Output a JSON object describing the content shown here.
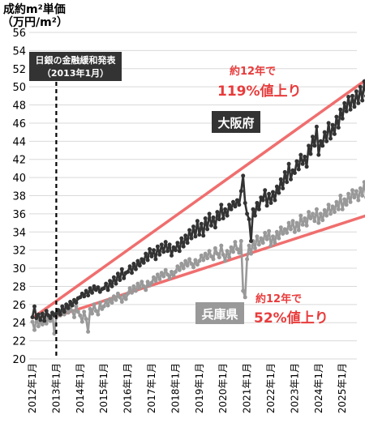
{
  "chart_data": {
    "type": "line",
    "ylabel_line1": "成約m²単価",
    "ylabel_line2": "（万円/m²）",
    "ylim": [
      20,
      56
    ],
    "yticks": [
      20,
      22,
      24,
      26,
      28,
      30,
      32,
      34,
      36,
      38,
      40,
      42,
      44,
      46,
      48,
      50,
      52,
      54,
      56
    ],
    "x_labels": [
      "2012年1月",
      "2013年1月",
      "2014年1月",
      "2015年1月",
      "2016年1月",
      "2017年1月",
      "2018年1月",
      "2019年1月",
      "2020年1月",
      "2021年1月",
      "2022年1月",
      "2023年1月",
      "2024年1月",
      "2025年1月"
    ],
    "x_last_label": "6月",
    "series": [
      {
        "name": "大阪府",
        "color": "#333333",
        "values": [
          24.6,
          25.8,
          24.5,
          24.9,
          24.3,
          25.0,
          24.2,
          25.3,
          24.8,
          24.5,
          25.1,
          24.8,
          25.0,
          25.4,
          24.9,
          25.8,
          25.2,
          26.0,
          25.6,
          26.3,
          25.9,
          26.5,
          26.2,
          26.7,
          26.8,
          27.2,
          26.9,
          27.5,
          27.0,
          27.8,
          27.3,
          28.0,
          27.6,
          27.9,
          27.4,
          27.7,
          27.8,
          28.3,
          27.6,
          28.6,
          28.0,
          29.0,
          28.3,
          29.4,
          28.7,
          29.9,
          28.9,
          29.5,
          29.6,
          30.2,
          29.5,
          30.5,
          29.9,
          30.8,
          30.3,
          31.0,
          30.6,
          31.6,
          30.9,
          32.1,
          31.3,
          32.0,
          31.0,
          32.4,
          31.5,
          32.6,
          31.8,
          32.9,
          31.9,
          32.6,
          31.4,
          32.3,
          32.0,
          32.8,
          31.9,
          33.3,
          32.4,
          33.6,
          32.8,
          34.2,
          33.3,
          34.6,
          33.5,
          35.2,
          33.7,
          34.9,
          33.6,
          35.5,
          34.3,
          36.0,
          34.7,
          35.6,
          34.5,
          36.2,
          35.4,
          37.0,
          35.5,
          36.5,
          35.8,
          37.0,
          36.5,
          37.3,
          36.8,
          37.5,
          37.0,
          38.5,
          40.2,
          37.2,
          36.0,
          35.4,
          33.0,
          36.5,
          35.8,
          37.2,
          36.5,
          37.8,
          37.5,
          38.6,
          36.9,
          38.2,
          37.2,
          38.4,
          37.5,
          39.0,
          38.3,
          39.8,
          38.8,
          40.6,
          39.5,
          41.5,
          39.8,
          40.8,
          40.5,
          41.8,
          40.9,
          42.5,
          41.5,
          42.3,
          41.2,
          43.5,
          42.6,
          44.5,
          43.5,
          45.6,
          42.5,
          44.0,
          43.5,
          45.0,
          44.0,
          46.0,
          44.3,
          45.8,
          44.8,
          46.7,
          45.5,
          47.5,
          46.5,
          48.2,
          47.3,
          48.9,
          47.5,
          49.0,
          47.8,
          49.5,
          48.2,
          50.0,
          48.5,
          50.6,
          49.0,
          51.5,
          48.8,
          52.0,
          50.0,
          53.5,
          51.0,
          52.5,
          50.5,
          52.8,
          51.8,
          54.0,
          52.5,
          51.6,
          53.0,
          51.4,
          53.2,
          52.8
        ]
      },
      {
        "name": "兵庫県",
        "color": "#999999",
        "values": [
          24.1,
          23.2,
          24.5,
          23.6,
          24.2,
          23.8,
          24.8,
          23.9,
          24.5,
          24.2,
          25.0,
          22.8,
          24.6,
          25.2,
          24.8,
          25.3,
          24.9,
          25.5,
          25.1,
          25.7,
          25.3,
          24.6,
          25.8,
          25.2,
          24.8,
          24.1,
          25.2,
          24.4,
          23.0,
          25.5,
          25.0,
          26.0,
          25.3,
          24.9,
          26.2,
          25.5,
          25.8,
          26.4,
          25.9,
          26.6,
          26.2,
          26.9,
          26.5,
          27.2,
          26.8,
          26.3,
          27.0,
          26.6,
          27.2,
          27.8,
          27.3,
          28.0,
          27.5,
          28.3,
          27.8,
          28.5,
          28.0,
          27.6,
          28.5,
          28.1,
          28.4,
          29.0,
          28.6,
          29.3,
          28.8,
          29.5,
          29.1,
          29.8,
          29.3,
          28.9,
          29.6,
          29.2,
          29.6,
          30.2,
          29.8,
          30.5,
          30.0,
          30.8,
          30.3,
          31.0,
          30.5,
          30.1,
          30.9,
          30.4,
          30.8,
          31.4,
          30.9,
          31.6,
          31.1,
          31.9,
          31.3,
          31.0,
          32.2,
          31.6,
          31.2,
          32.5,
          31.5,
          30.8,
          31.9,
          31.2,
          32.3,
          31.8,
          32.9,
          32.1,
          31.7,
          33.0,
          27.5,
          26.8,
          31.0,
          32.5,
          31.6,
          33.0,
          32.2,
          33.5,
          32.6,
          33.3,
          32.8,
          33.9,
          33.2,
          34.1,
          32.5,
          33.5,
          32.8,
          34.0,
          33.3,
          34.5,
          33.8,
          34.3,
          33.9,
          35.0,
          34.3,
          35.2,
          34.0,
          35.0,
          34.2,
          35.8,
          34.8,
          35.5,
          34.7,
          36.2,
          35.5,
          36.0,
          35.2,
          36.5,
          35.0,
          36.0,
          35.3,
          36.4,
          35.8,
          37.0,
          36.0,
          36.8,
          36.2,
          37.3,
          36.5,
          38.0,
          36.5,
          37.6,
          37.0,
          38.2,
          37.3,
          38.6,
          37.8,
          38.5,
          37.5,
          38.8,
          38.0,
          39.5,
          37.8,
          38.6,
          37.6,
          38.9,
          38.2,
          39.1,
          37.9,
          38.7,
          37.5,
          38.0,
          36.8,
          39.0,
          38.2,
          39.8,
          35.5,
          37.5,
          33.8,
          36.9
        ]
      }
    ],
    "event_label_line1": "日銀の金融緩和発表",
    "event_label_line2": "（2013年1月）",
    "series_label_osaka": "大阪府",
    "series_label_hyogo": "兵庫県",
    "annotation_osaka_line1": "約12年で",
    "annotation_osaka_line2": "119%値上り",
    "annotation_hyogo_line1": "約12年で",
    "annotation_hyogo_line2": "52%値上り",
    "trend_color": "#f06e6e",
    "annotation_color": "#e83c3c"
  }
}
